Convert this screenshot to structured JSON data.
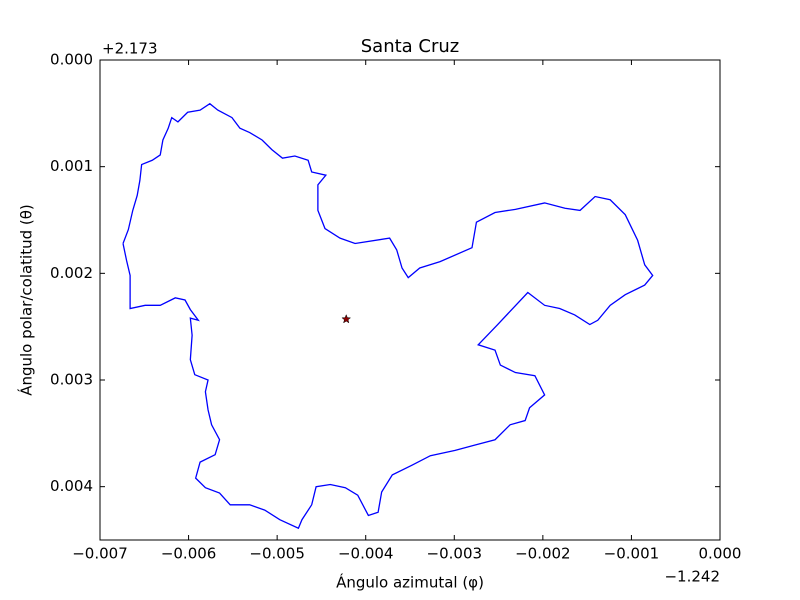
{
  "chart_data": {
    "type": "line",
    "title": "Santa Cruz",
    "x_label": "Ángulo azimutal (φ)",
    "y_label": "Ángulo polar/colatitud (θ)",
    "x_offset_label": "−1.242",
    "y_offset_label": "+2.173",
    "xlim": [
      -0.007,
      0
    ],
    "ylim": [
      0.0045,
      0
    ],
    "xticks": [
      {
        "value": -0.007,
        "label": "−0.007"
      },
      {
        "value": -0.006,
        "label": "−0.006"
      },
      {
        "value": -0.005,
        "label": "−0.005"
      },
      {
        "value": -0.004,
        "label": "−0.004"
      },
      {
        "value": -0.003,
        "label": "−0.003"
      },
      {
        "value": -0.002,
        "label": "−0.002"
      },
      {
        "value": -0.001,
        "label": "−0.001"
      },
      {
        "value": 0,
        "label": "0.000"
      }
    ],
    "yticks": [
      {
        "value": 0,
        "label": "0.000"
      },
      {
        "value": 0.001,
        "label": "0.001"
      },
      {
        "value": 0.002,
        "label": "0.002"
      },
      {
        "value": 0.003,
        "label": "0.003"
      },
      {
        "value": 0.004,
        "label": "0.004"
      }
    ],
    "grid": false,
    "series": [
      {
        "color": "#0000ff",
        "x": [
          -0.00674,
          -0.00668,
          -0.00663,
          -0.00658,
          -0.00655,
          -0.00653,
          -0.00641,
          -0.00632,
          -0.00629,
          -0.00623,
          -0.00619,
          -0.00612,
          -0.00601,
          -0.00587,
          -0.00576,
          -0.00567,
          -0.00551,
          -0.00542,
          -0.00531,
          -0.00517,
          -0.00506,
          -0.00494,
          -0.0048,
          -0.00465,
          -0.00461,
          -0.00445,
          -0.00454,
          -0.00454,
          -0.00446,
          -0.00429,
          -0.00412,
          -0.00373,
          -0.00365,
          -0.00359,
          -0.00352,
          -0.00339,
          -0.00316,
          -0.0028,
          -0.00275,
          -0.00254,
          -0.00231,
          -0.00198,
          -0.00175,
          -0.00158,
          -0.00141,
          -0.00124,
          -0.00107,
          -0.00093,
          -0.00085,
          -0.00076,
          -0.00085,
          -0.00107,
          -0.00124,
          -0.00138,
          -0.00147,
          -0.00164,
          -0.00181,
          -0.00198,
          -0.00217,
          -0.00251,
          -0.00273,
          -0.00254,
          -0.00248,
          -0.00231,
          -0.00209,
          -0.00198,
          -0.00215,
          -0.0022,
          -0.00237,
          -0.00254,
          -0.00277,
          -0.00299,
          -0.00327,
          -0.00348,
          -0.0037,
          -0.00382,
          -0.00386,
          -0.00397,
          -0.00409,
          -0.00423,
          -0.0044,
          -0.00456,
          -0.00461,
          -0.00472,
          -0.00476,
          -0.00497,
          -0.00514,
          -0.00531,
          -0.00553,
          -0.00565,
          -0.00581,
          -0.00592,
          -0.00587,
          -0.0057,
          -0.00565,
          -0.00574,
          -0.00578,
          -0.00581,
          -0.00578,
          -0.00593,
          -0.00598,
          -0.00596,
          -0.00598,
          -0.00589,
          -0.00598,
          -0.00604,
          -0.00615,
          -0.00632,
          -0.00649,
          -0.00666,
          -0.00666,
          -0.00666,
          -0.0067,
          -0.00674
        ],
        "values": [
          0.00172,
          0.00159,
          0.00141,
          0.00127,
          0.00113,
          0.00098,
          0.00094,
          0.00089,
          0.00075,
          0.00064,
          0.00054,
          0.00058,
          0.00049,
          0.00047,
          0.00041,
          0.00047,
          0.00054,
          0.00064,
          0.00068,
          0.00075,
          0.00084,
          0.00092,
          0.0009,
          0.00094,
          0.00105,
          0.00108,
          0.00117,
          0.00141,
          0.00158,
          0.00167,
          0.00172,
          0.00167,
          0.00178,
          0.00195,
          0.00204,
          0.00195,
          0.00189,
          0.00176,
          0.00152,
          0.00143,
          0.0014,
          0.00134,
          0.00139,
          0.00141,
          0.00128,
          0.00131,
          0.00145,
          0.00169,
          0.00192,
          0.00202,
          0.00211,
          0.0022,
          0.0023,
          0.00244,
          0.00248,
          0.00239,
          0.00233,
          0.0023,
          0.00218,
          0.00248,
          0.00267,
          0.00272,
          0.00286,
          0.00293,
          0.00296,
          0.00314,
          0.00326,
          0.00338,
          0.00342,
          0.00356,
          0.00361,
          0.00366,
          0.00371,
          0.0038,
          0.00389,
          0.00405,
          0.00424,
          0.00427,
          0.00408,
          0.00401,
          0.00398,
          0.004,
          0.00417,
          0.00431,
          0.00439,
          0.00431,
          0.00422,
          0.00417,
          0.00417,
          0.00406,
          0.00401,
          0.00392,
          0.00377,
          0.0037,
          0.00356,
          0.00342,
          0.00328,
          0.00311,
          0.003,
          0.00295,
          0.00281,
          0.00258,
          0.00242,
          0.00244,
          0.00234,
          0.00225,
          0.00223,
          0.0023,
          0.0023,
          0.00233,
          0.0022,
          0.00202,
          0.00188,
          0.00172
        ]
      }
    ],
    "marker_point": {
      "x": -0.00422,
      "y": 0.00243,
      "color": "#8b0000"
    }
  }
}
